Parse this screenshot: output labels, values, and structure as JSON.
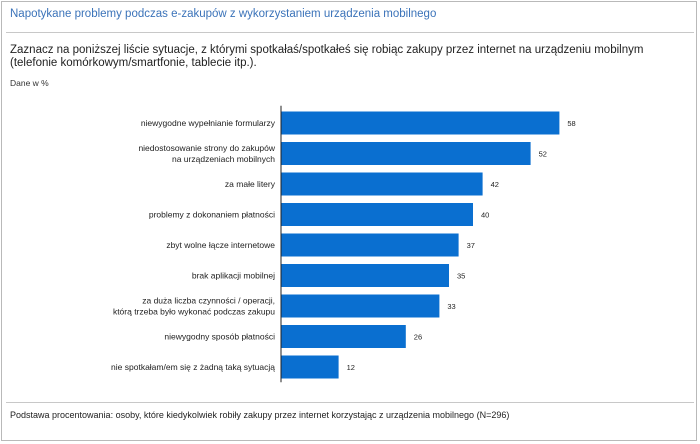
{
  "header": {
    "title": "Napotykane problemy podczas e-zakupów z wykorzystaniem urządzenia mobilnego"
  },
  "question": "Zaznacz na poniższej liście sytuacje, z którymi spotkałaś/spotkałeś się robiąc zakupy przez internet na urządzeniu mobilnym (telefonie komórkowym/smartfonie, tablecie itp.).",
  "unit_label": "Dane w %",
  "footnote": "Podstawa procentowania: osoby, które kiedykolwiek robiły zakupy przez internet korzystając z urządzenia mobilnego (N=296)",
  "colors": {
    "bar": "#0a6fd0",
    "axis": "#222222",
    "title": "#3b73b9"
  },
  "chart_data": {
    "type": "bar",
    "orientation": "horizontal",
    "categories": [
      [
        "niewygodne wypełnianie formularzy"
      ],
      [
        "niedostosowanie strony do zakupów",
        "na urządzeniach mobilnych"
      ],
      [
        "za małe litery"
      ],
      [
        "problemy z dokonaniem płatności"
      ],
      [
        "zbyt wolne łącze internetowe"
      ],
      [
        "brak aplikacji mobilnej"
      ],
      [
        "za duża liczba czynności / operacji,",
        "którą trzeba było wykonać podczas zakupu"
      ],
      [
        "niewygodny sposób płatności"
      ],
      [
        "nie spotkałam/em się z żadną taką sytuacją"
      ]
    ],
    "values": [
      58,
      52,
      42,
      40,
      37,
      35,
      33,
      26,
      12
    ],
    "xlim": [
      0,
      60
    ],
    "grid": false,
    "legend": "none"
  }
}
